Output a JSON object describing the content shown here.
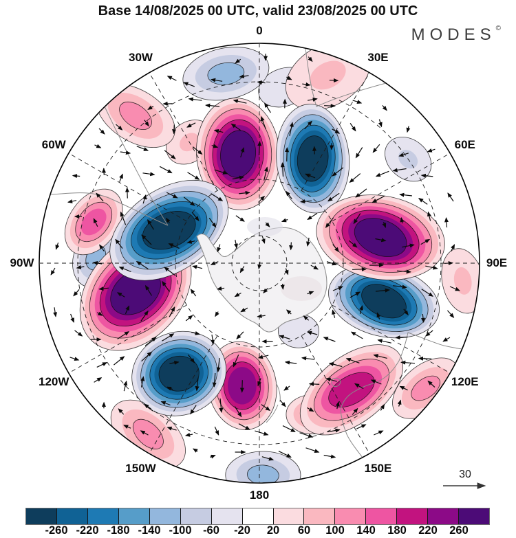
{
  "title": "Base 14/08/2025 00 UTC, valid 23/08/2025 00 UTC",
  "brand": {
    "name": "MODES",
    "mark": "©"
  },
  "wind_legend": {
    "value": "30"
  },
  "map": {
    "meridian_labels": [
      {
        "label": "0",
        "lon": 0
      },
      {
        "label": "30E",
        "lon": 30
      },
      {
        "label": "60E",
        "lon": 60
      },
      {
        "label": "90E",
        "lon": 90
      },
      {
        "label": "120E",
        "lon": 120
      },
      {
        "label": "150E",
        "lon": 150
      },
      {
        "label": "180",
        "lon": 180
      },
      {
        "label": "150W",
        "lon": -150
      },
      {
        "label": "120W",
        "lon": -120
      },
      {
        "label": "90W",
        "lon": -90
      },
      {
        "label": "60W",
        "lon": -60
      },
      {
        "label": "30W",
        "lon": -30
      }
    ]
  },
  "colorbar": {
    "tick_labels": [
      "-260",
      "-220",
      "-180",
      "-140",
      "-100",
      "-60",
      "-20",
      "20",
      "60",
      "100",
      "140",
      "180",
      "220",
      "260"
    ],
    "colors": [
      "#0e3d5c",
      "#106295",
      "#1e7ab4",
      "#569dc9",
      "#93b7dd",
      "#c6cce2",
      "#e5e3ef",
      "#ffffff",
      "#fbdce0",
      "#fab8c0",
      "#f98cb0",
      "#ee55a2",
      "#c2137f",
      "#8c0a87",
      "#4c0b77"
    ]
  },
  "chart_data": {
    "type": "filled_contour_polar_map",
    "projection": "south_polar_stereographic",
    "rim_latitude": -20,
    "contour_interval": 40,
    "levels": [
      -260,
      -220,
      -180,
      -140,
      -100,
      -60,
      -20,
      20,
      60,
      100,
      140,
      180,
      220,
      260
    ],
    "wind_reference_arrow": 30,
    "anomaly_centers": [
      {
        "lon": -11,
        "lat": -51,
        "value": 290,
        "radius_deg": 13,
        "elong": 1.35,
        "tilt": 85
      },
      {
        "lon": 78,
        "lat": -47,
        "value": 295,
        "radius_deg": 14,
        "elong": 1.55,
        "tilt": 10
      },
      {
        "lon": -103,
        "lat": -46,
        "value": 290,
        "radius_deg": 15,
        "elong": 1.4,
        "tilt": -50
      },
      {
        "lon": -172,
        "lat": -47,
        "value": 245,
        "radius_deg": 10.5,
        "elong": 1.3,
        "tilt": 80
      },
      {
        "lon": 144,
        "lat": -37,
        "value": 195,
        "radius_deg": 12,
        "elong": 1.8,
        "tilt": -38
      },
      {
        "lon": -76,
        "lat": -33,
        "value": 155,
        "radius_deg": 8,
        "elong": 1.5,
        "tilt": -55
      },
      {
        "lon": -40,
        "lat": -27,
        "value": 115,
        "radius_deg": 9,
        "elong": 1.7,
        "tilt": 32
      },
      {
        "lon": 20,
        "lat": -25,
        "value": 75,
        "radius_deg": 10,
        "elong": 1.5,
        "tilt": -30
      },
      {
        "lon": 127,
        "lat": -23,
        "value": 115,
        "radius_deg": 8,
        "elong": 1.7,
        "tilt": -40
      },
      {
        "lon": -147,
        "lat": -24,
        "value": 115,
        "radius_deg": 9,
        "elong": 1.7,
        "tilt": 40
      },
      {
        "lon": -30,
        "lat": -42,
        "value": 95,
        "radius_deg": 6,
        "elong": 1.3,
        "tilt": -40
      },
      {
        "lon": 95,
        "lat": -24,
        "value": 95,
        "radius_deg": 7,
        "elong": 1.6,
        "tilt": 78
      },
      {
        "lon": 161,
        "lat": -36,
        "value": 115,
        "radius_deg": 6,
        "elong": 1.3,
        "tilt": 0
      },
      {
        "lon": 27,
        "lat": -49,
        "value": -292,
        "radius_deg": 12,
        "elong": 1.5,
        "tilt": 85
      },
      {
        "lon": -70,
        "lat": -56,
        "value": -295,
        "radius_deg": 14,
        "elong": 1.6,
        "tilt": -34
      },
      {
        "lon": -144,
        "lat": -43,
        "value": -288,
        "radius_deg": 12,
        "elong": 1.15,
        "tilt": -20
      },
      {
        "lon": 107,
        "lat": -45,
        "value": -288,
        "radius_deg": 12,
        "elong": 1.6,
        "tilt": 14
      },
      {
        "lon": -10,
        "lat": -27,
        "value": -135,
        "radius_deg": 9,
        "elong": 1.7,
        "tilt": -12
      },
      {
        "lon": 179,
        "lat": -22,
        "value": -115,
        "radius_deg": 8,
        "elong": 1.6,
        "tilt": 0
      },
      {
        "lon": 55,
        "lat": -30,
        "value": -75,
        "radius_deg": 6,
        "elong": 1.3,
        "tilt": 40
      },
      {
        "lon": 150,
        "lat": -62,
        "value": -45,
        "radius_deg": 5,
        "elong": 1.2,
        "tilt": 0
      },
      {
        "lon": 8,
        "lat": -31,
        "value": -45,
        "radius_deg": 6,
        "elong": 1.4,
        "tilt": -20
      },
      {
        "lon": -88,
        "lat": -35,
        "value": -120,
        "radius_deg": 7,
        "elong": 1.4,
        "tilt": -70
      }
    ]
  }
}
